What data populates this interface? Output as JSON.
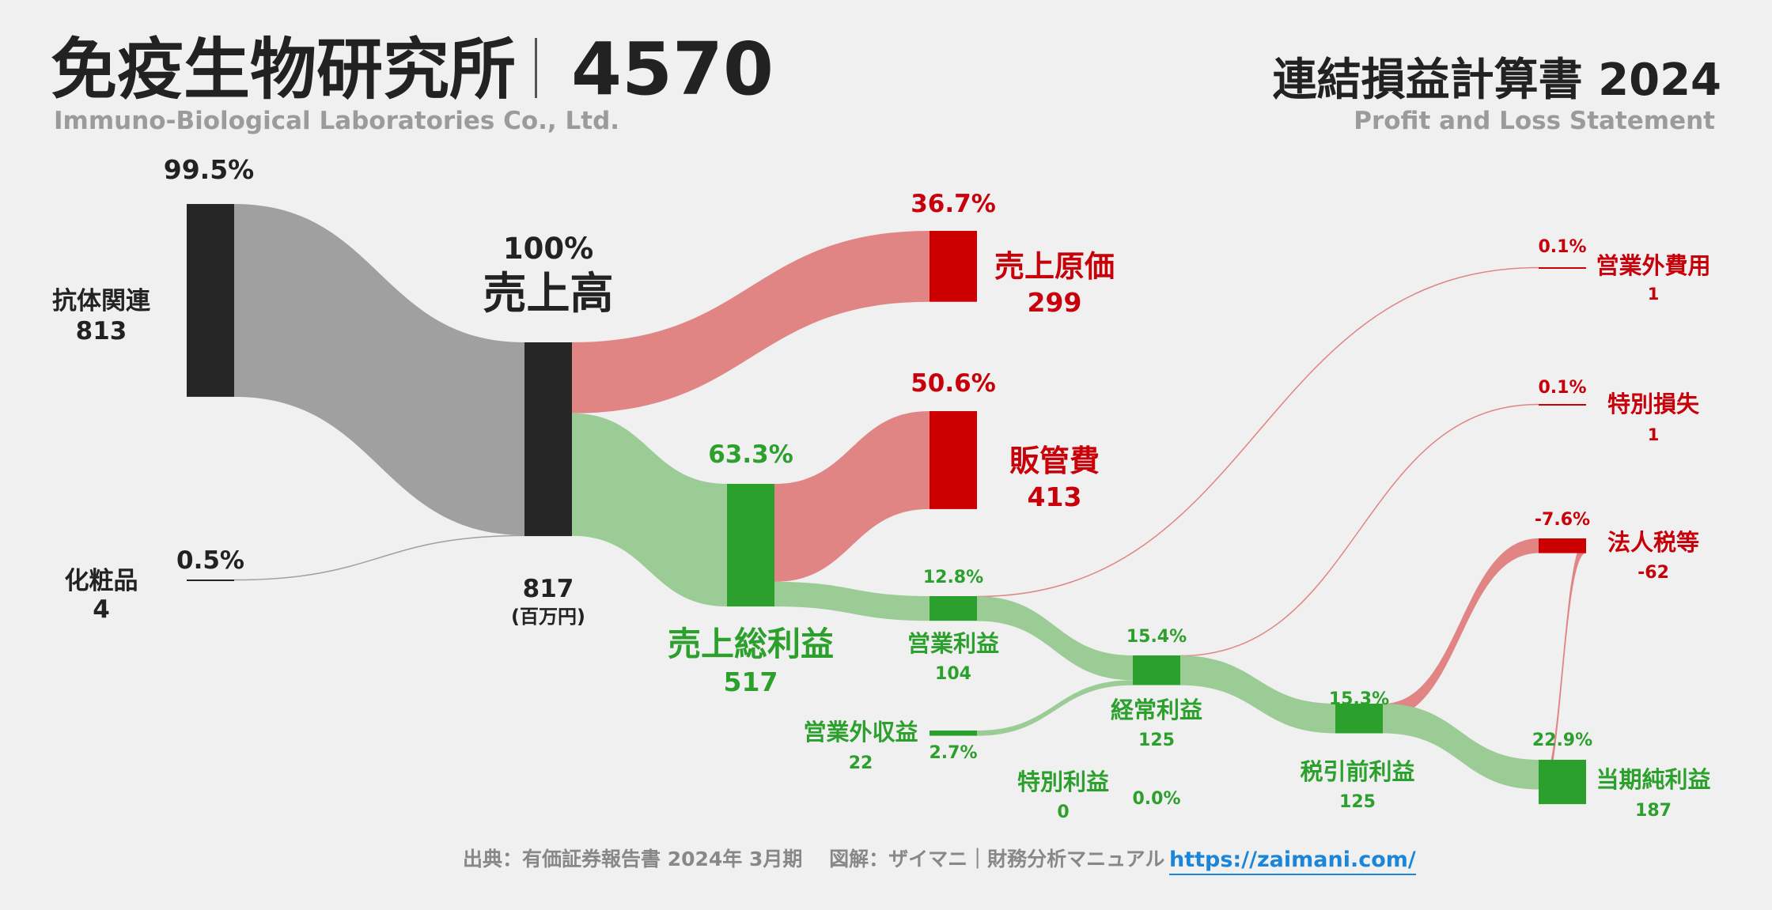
{
  "header": {
    "company": "免疫生物研究所",
    "code": "4570",
    "company_en": "Immuno-Biological Laboratories Co., Ltd.",
    "statement": "連結損益計算書 2024",
    "statement_en": "Profit and Loss Statement"
  },
  "footer": {
    "source": "出典：有価証券報告書 2024年 3月期　 図解：ザイマニ｜財務分析マニュアル",
    "link": "https://zaimani.com/"
  },
  "colors": {
    "background": "#f0f0f0",
    "node_dark": "#262626",
    "flow_gray": "#a0a0a0",
    "node_red": "#cc0000",
    "flow_red": "#e08484",
    "node_green": "#2ca02c",
    "flow_green": "#9ccc96"
  },
  "chart_data": {
    "type": "sankey",
    "unit": "(百万円)",
    "nodes": [
      {
        "id": "antibody",
        "label": "抗体関連",
        "value": "813",
        "pct": "99.5%"
      },
      {
        "id": "cosmetics",
        "label": "化粧品",
        "value": "4",
        "pct": "0.5%"
      },
      {
        "id": "revenue",
        "label": "売上高",
        "value": "817",
        "pct": "100%"
      },
      {
        "id": "cogs",
        "label": "売上原価",
        "value": "299",
        "pct": "36.7%"
      },
      {
        "id": "gross",
        "label": "売上総利益",
        "value": "517",
        "pct": "63.3%"
      },
      {
        "id": "sga",
        "label": "販管費",
        "value": "413",
        "pct": "50.6%"
      },
      {
        "id": "op",
        "label": "営業利益",
        "value": "104",
        "pct": "12.8%"
      },
      {
        "id": "nonop_inc",
        "label": "営業外収益",
        "value": "22",
        "pct": "2.7%"
      },
      {
        "id": "nonop_exp",
        "label": "営業外費用",
        "value": "1",
        "pct": "0.1%"
      },
      {
        "id": "ordinary",
        "label": "経常利益",
        "value": "125",
        "pct": "15.4%"
      },
      {
        "id": "ext_gain",
        "label": "特別利益",
        "value": "0",
        "pct": "0.0%"
      },
      {
        "id": "ext_loss",
        "label": "特別損失",
        "value": "1",
        "pct": "0.1%"
      },
      {
        "id": "pretax",
        "label": "税引前利益",
        "value": "125",
        "pct": "15.3%"
      },
      {
        "id": "tax",
        "label": "法人税等",
        "value": "-62",
        "pct": "-7.6%"
      },
      {
        "id": "net",
        "label": "当期純利益",
        "value": "187",
        "pct": "22.9%"
      }
    ],
    "links": [
      {
        "source": "antibody",
        "target": "revenue",
        "value": 813
      },
      {
        "source": "cosmetics",
        "target": "revenue",
        "value": 4
      },
      {
        "source": "revenue",
        "target": "cogs",
        "value": 299
      },
      {
        "source": "revenue",
        "target": "gross",
        "value": 517
      },
      {
        "source": "gross",
        "target": "sga",
        "value": 413
      },
      {
        "source": "gross",
        "target": "op",
        "value": 104
      },
      {
        "source": "op",
        "target": "nonop_exp",
        "value": 1
      },
      {
        "source": "op",
        "target": "ordinary",
        "value": 104
      },
      {
        "source": "nonop_inc",
        "target": "ordinary",
        "value": 22
      },
      {
        "source": "ordinary",
        "target": "ext_loss",
        "value": 1
      },
      {
        "source": "ordinary",
        "target": "pretax",
        "value": 125
      },
      {
        "source": "pretax",
        "target": "tax",
        "value": 62
      },
      {
        "source": "pretax",
        "target": "net",
        "value": 125
      },
      {
        "source": "tax",
        "target": "net",
        "value": 62
      }
    ]
  }
}
